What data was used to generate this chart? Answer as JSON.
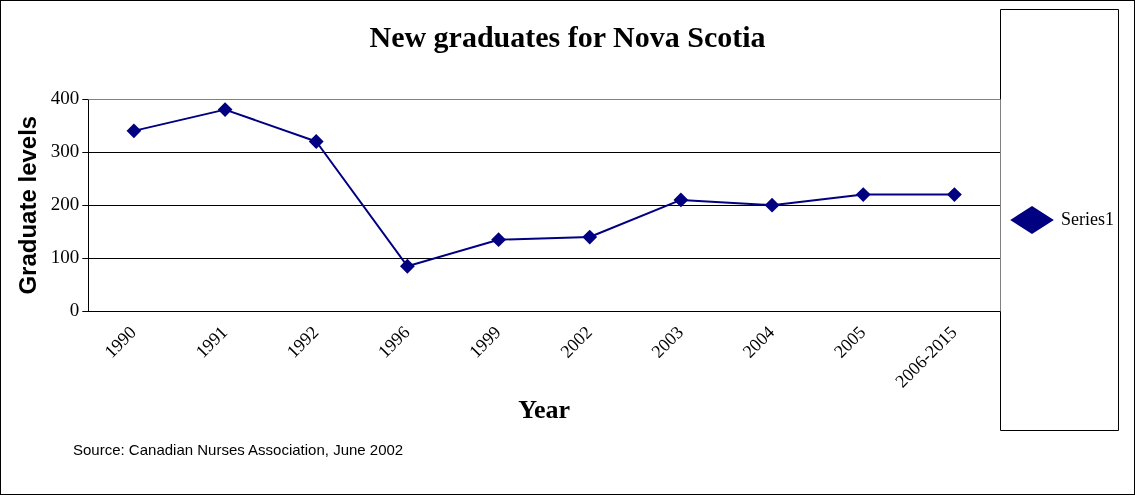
{
  "chart_data": {
    "type": "line",
    "title": "New graduates for Nova Scotia",
    "xlabel": "Year",
    "ylabel": "Graduate levels",
    "categories": [
      "1990",
      "1991",
      "1992",
      "1996",
      "1999",
      "2002",
      "2003",
      "2004",
      "2005",
      "2006-2015"
    ],
    "series": [
      {
        "name": "Series1",
        "color": "#000080",
        "values": [
          340,
          380,
          320,
          85,
          135,
          140,
          210,
          200,
          220,
          220
        ]
      }
    ],
    "ylim": [
      0,
      400
    ],
    "yticks": [
      0,
      100,
      200,
      300,
      400
    ],
    "grid": "y",
    "legend": "right",
    "marker": "diamond",
    "annotations": [
      "Source: Canadian Nurses Association, June 2002"
    ]
  }
}
